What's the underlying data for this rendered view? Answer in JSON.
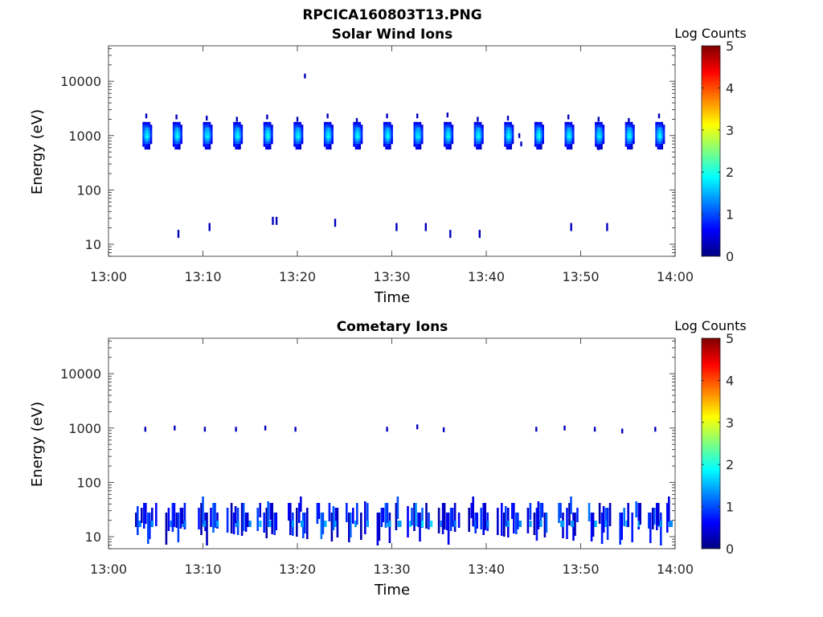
{
  "figure_title": "RPCICA160803T13.PNG",
  "colors": {
    "axis": "#262626",
    "colormap": [
      "#00007f",
      "#0000ff",
      "#007fff",
      "#00ffff",
      "#7fff7f",
      "#ffff00",
      "#ff7f00",
      "#ff0000",
      "#7f0000"
    ]
  },
  "chart_data": [
    {
      "type": "heatmap",
      "title": "Solar Wind Ions",
      "xlabel": "Time",
      "ylabel": "Energy (eV)",
      "x_ticks": [
        "13:00",
        "13:10",
        "13:20",
        "13:30",
        "13:40",
        "13:50",
        "14:00"
      ],
      "xlim_minutes": [
        0,
        60
      ],
      "y_scale": "log",
      "ylim": [
        6,
        45000
      ],
      "y_ticks": [
        "10",
        "100",
        "1000",
        "10000"
      ],
      "colorbar": {
        "label": "Log Counts",
        "range": [
          0,
          5
        ],
        "ticks": [
          "0",
          "1",
          "2",
          "3",
          "4",
          "5"
        ]
      },
      "grid": false,
      "blobs": [
        {
          "t": 4.0,
          "e": 1000,
          "v": 1.6
        },
        {
          "t": 7.2,
          "e": 1000,
          "v": 1.6
        },
        {
          "t": 10.4,
          "e": 1000,
          "v": 1.5
        },
        {
          "t": 13.6,
          "e": 1000,
          "v": 1.6
        },
        {
          "t": 16.8,
          "e": 1000,
          "v": 1.7
        },
        {
          "t": 20.0,
          "e": 1000,
          "v": 1.6
        },
        {
          "t": 23.2,
          "e": 1000,
          "v": 1.6
        },
        {
          "t": 26.3,
          "e": 1000,
          "v": 1.6
        },
        {
          "t": 29.5,
          "e": 1000,
          "v": 1.6
        },
        {
          "t": 32.7,
          "e": 1000,
          "v": 1.5
        },
        {
          "t": 35.9,
          "e": 1000,
          "v": 1.6
        },
        {
          "t": 39.1,
          "e": 1000,
          "v": 1.6
        },
        {
          "t": 42.3,
          "e": 1000,
          "v": 1.6
        },
        {
          "t": 45.5,
          "e": 1000,
          "v": 1.7
        },
        {
          "t": 48.7,
          "e": 1000,
          "v": 1.6
        },
        {
          "t": 51.9,
          "e": 1000,
          "v": 1.5
        },
        {
          "t": 55.1,
          "e": 1000,
          "v": 1.6
        },
        {
          "t": 58.3,
          "e": 1000,
          "v": 1.6
        }
      ],
      "points": [
        {
          "t": 4.0,
          "e": 2300,
          "v": 0.3
        },
        {
          "t": 7.2,
          "e": 2200,
          "v": 0.3
        },
        {
          "t": 10.4,
          "e": 2100,
          "v": 0.3
        },
        {
          "t": 13.6,
          "e": 2000,
          "v": 0.3
        },
        {
          "t": 16.8,
          "e": 2200,
          "v": 0.3
        },
        {
          "t": 20.0,
          "e": 2000,
          "v": 0.3
        },
        {
          "t": 23.2,
          "e": 2300,
          "v": 0.3
        },
        {
          "t": 26.3,
          "e": 1900,
          "v": 0.3
        },
        {
          "t": 29.5,
          "e": 2300,
          "v": 0.3
        },
        {
          "t": 32.7,
          "e": 2300,
          "v": 0.3
        },
        {
          "t": 35.9,
          "e": 2400,
          "v": 0.3
        },
        {
          "t": 39.1,
          "e": 2000,
          "v": 0.3
        },
        {
          "t": 42.3,
          "e": 2100,
          "v": 0.3
        },
        {
          "t": 48.7,
          "e": 2200,
          "v": 0.3
        },
        {
          "t": 51.9,
          "e": 2000,
          "v": 0.3
        },
        {
          "t": 55.1,
          "e": 1900,
          "v": 0.3
        },
        {
          "t": 58.3,
          "e": 2300,
          "v": 0.3
        },
        {
          "t": 20.8,
          "e": 12500,
          "v": 0.3
        },
        {
          "t": 43.5,
          "e": 1000,
          "v": 0.3
        },
        {
          "t": 43.7,
          "e": 700,
          "v": 0.3
        },
        {
          "t": 51.9,
          "e": 600,
          "v": 0.3
        },
        {
          "t": 7.4,
          "e": 15,
          "v": 0.3
        },
        {
          "t": 10.7,
          "e": 20,
          "v": 0.3
        },
        {
          "t": 17.4,
          "e": 26,
          "v": 0.3
        },
        {
          "t": 17.8,
          "e": 26,
          "v": 0.3
        },
        {
          "t": 24.0,
          "e": 24,
          "v": 0.3
        },
        {
          "t": 30.5,
          "e": 20,
          "v": 0.3
        },
        {
          "t": 33.6,
          "e": 20,
          "v": 0.3
        },
        {
          "t": 36.2,
          "e": 15,
          "v": 0.3
        },
        {
          "t": 39.3,
          "e": 15,
          "v": 0.3
        },
        {
          "t": 49.0,
          "e": 20,
          "v": 0.3
        },
        {
          "t": 52.8,
          "e": 20,
          "v": 0.3
        }
      ]
    },
    {
      "type": "heatmap",
      "title": "Cometary Ions",
      "xlabel": "Time",
      "ylabel": "Energy (eV)",
      "x_ticks": [
        "13:00",
        "13:10",
        "13:20",
        "13:30",
        "13:40",
        "13:50",
        "14:00"
      ],
      "xlim_minutes": [
        0,
        60
      ],
      "y_scale": "log",
      "ylim": [
        6,
        45000
      ],
      "y_ticks": [
        "10",
        "100",
        "1000",
        "10000"
      ],
      "colorbar": {
        "label": "Log Counts",
        "range": [
          0,
          5
        ],
        "ticks": [
          "0",
          "1",
          "2",
          "3",
          "4",
          "5"
        ]
      },
      "grid": false,
      "columns": [
        {
          "t": 4.0,
          "v": 0.9
        },
        {
          "t": 7.2,
          "v": 0.8
        },
        {
          "t": 10.4,
          "v": 1.0
        },
        {
          "t": 13.6,
          "v": 0.9
        },
        {
          "t": 16.8,
          "v": 1.1
        },
        {
          "t": 20.0,
          "v": 1.0
        },
        {
          "t": 23.2,
          "v": 1.1
        },
        {
          "t": 26.3,
          "v": 1.0
        },
        {
          "t": 29.5,
          "v": 1.0
        },
        {
          "t": 32.7,
          "v": 1.3
        },
        {
          "t": 35.9,
          "v": 0.8
        },
        {
          "t": 39.1,
          "v": 0.8
        },
        {
          "t": 42.3,
          "v": 0.9
        },
        {
          "t": 45.5,
          "v": 1.0
        },
        {
          "t": 48.7,
          "v": 1.0
        },
        {
          "t": 51.9,
          "v": 1.1
        },
        {
          "t": 55.1,
          "v": 1.1
        },
        {
          "t": 58.3,
          "v": 0.9
        }
      ],
      "points": [
        {
          "t": 3.9,
          "e": 950,
          "v": 0.3
        },
        {
          "t": 7.0,
          "e": 1000,
          "v": 0.3
        },
        {
          "t": 10.2,
          "e": 950,
          "v": 0.3
        },
        {
          "t": 13.5,
          "e": 950,
          "v": 0.3
        },
        {
          "t": 16.6,
          "e": 1000,
          "v": 0.3
        },
        {
          "t": 19.8,
          "e": 950,
          "v": 0.3
        },
        {
          "t": 29.5,
          "e": 950,
          "v": 0.3
        },
        {
          "t": 32.7,
          "e": 1050,
          "v": 0.3
        },
        {
          "t": 35.5,
          "e": 930,
          "v": 0.3
        },
        {
          "t": 45.3,
          "e": 950,
          "v": 0.3
        },
        {
          "t": 48.3,
          "e": 1000,
          "v": 0.3
        },
        {
          "t": 51.5,
          "e": 950,
          "v": 0.3
        },
        {
          "t": 54.4,
          "e": 880,
          "v": 0.3
        },
        {
          "t": 57.9,
          "e": 950,
          "v": 0.3
        }
      ]
    }
  ]
}
